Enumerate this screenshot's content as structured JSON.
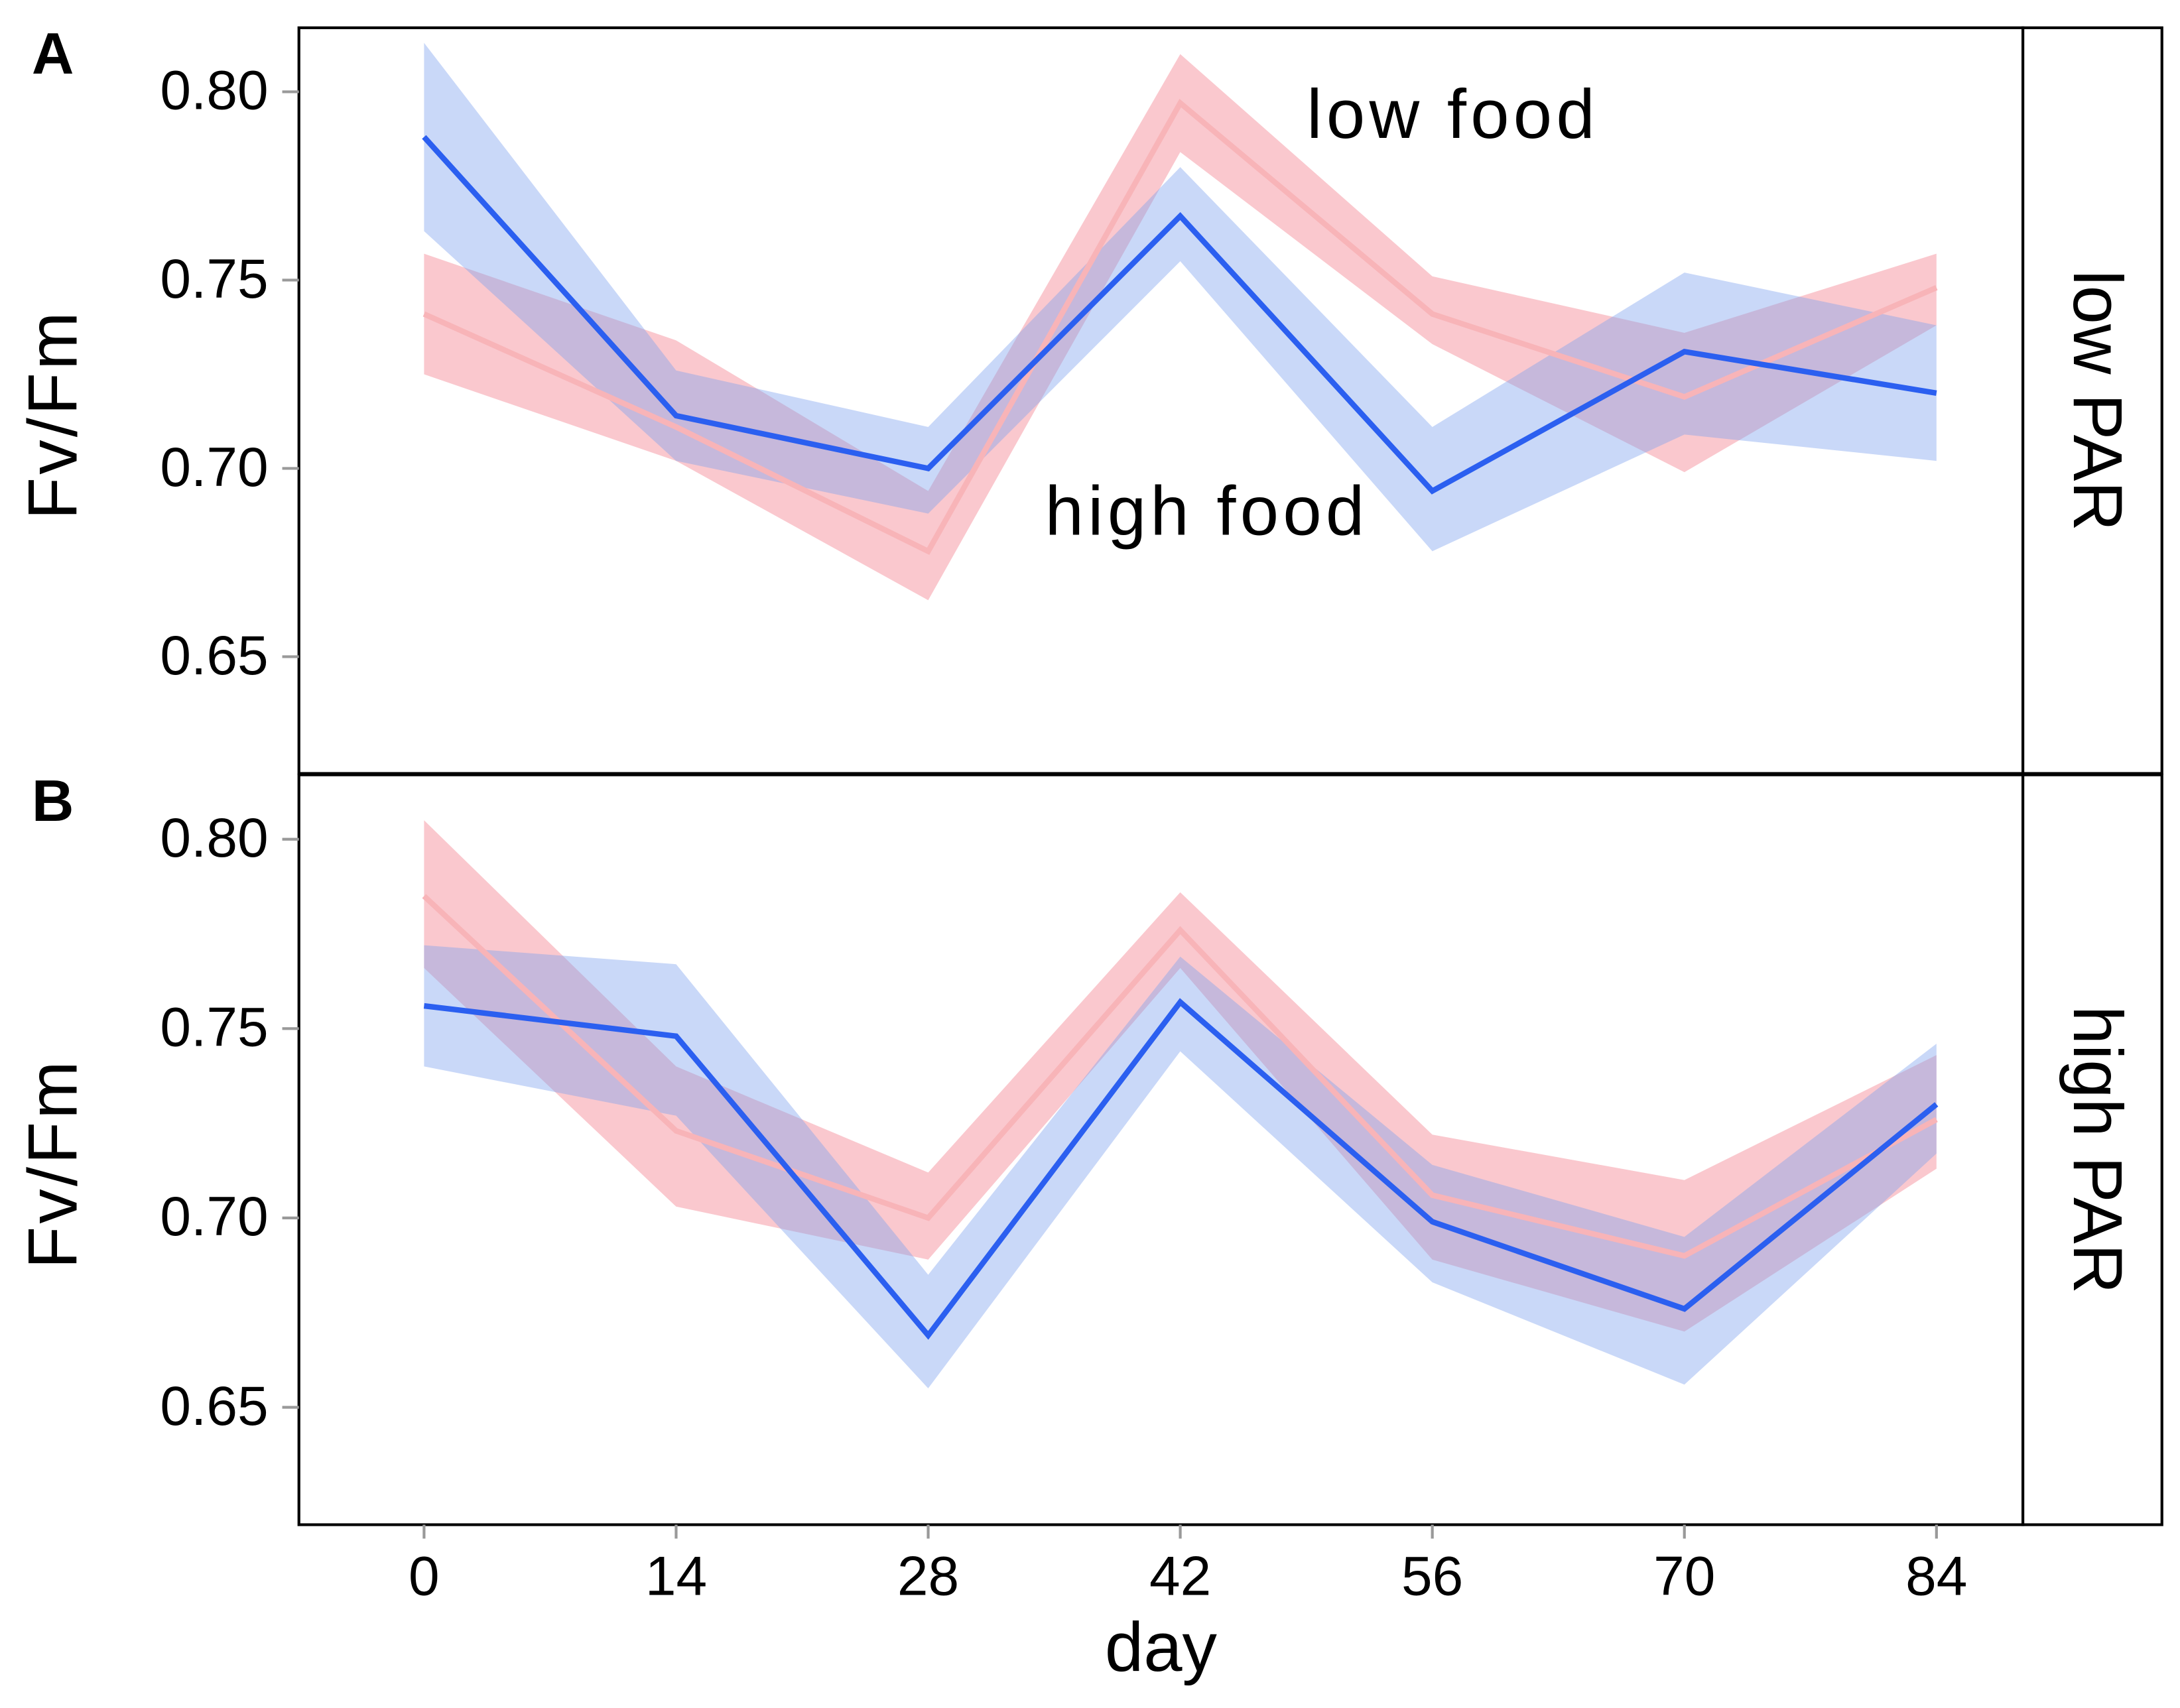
{
  "chart_data": [
    {
      "type": "line",
      "panel_label": "A",
      "facet_label": "low PAR",
      "y_label": "Fv/Fm",
      "x": [
        0,
        14,
        28,
        42,
        56,
        70,
        84
      ],
      "xlim": [
        -6.95,
        88.8
      ],
      "ylim": [
        0.619,
        0.817
      ],
      "yticks": [
        {
          "value": 0.8,
          "label": "0.80"
        },
        0.75,
        {
          "value": 0.7,
          "label": "0.70"
        },
        0.65
      ],
      "series": [
        {
          "name": "low food",
          "color": "#f8b4b8",
          "label_color": "#ee1c25",
          "band_color": "#f27c8a",
          "values": [
            0.741,
            0.711,
            0.678,
            0.797,
            0.741,
            0.719,
            0.748
          ],
          "lower": [
            0.725,
            0.702,
            0.665,
            0.784,
            0.733,
            0.699,
            0.738
          ],
          "upper": [
            0.757,
            0.734,
            0.694,
            0.81,
            0.751,
            0.736,
            0.757
          ]
        },
        {
          "name": "high food",
          "color": "#2b5ff0",
          "label_color": "#1a1aee",
          "band_color": "#7ea2ee",
          "values": [
            0.788,
            0.714,
            0.7,
            0.767,
            0.694,
            0.731,
            0.72
          ],
          "lower": [
            0.763,
            0.702,
            0.688,
            0.755,
            0.678,
            0.709,
            0.702
          ],
          "upper": [
            0.813,
            0.726,
            0.711,
            0.78,
            0.711,
            0.752,
            0.738
          ]
        }
      ]
    },
    {
      "type": "line",
      "panel_label": "B",
      "facet_label": "high PAR",
      "y_label": "Fv/Fm",
      "x_label": "day",
      "x": [
        0,
        14,
        28,
        42,
        56,
        70,
        84
      ],
      "xlim": [
        -6.95,
        88.8
      ],
      "xticks": [
        0,
        14,
        28,
        42,
        56,
        70,
        84
      ],
      "ylim": [
        0.619,
        0.817
      ],
      "yticks": [
        {
          "value": 0.8,
          "label": "0.80"
        },
        0.75,
        {
          "value": 0.7,
          "label": "0.70"
        },
        0.65
      ],
      "series": [
        {
          "color": "#f8b4b8",
          "band_color": "#f27c8a",
          "values": [
            0.785,
            0.723,
            0.7,
            0.776,
            0.706,
            0.69,
            0.726
          ],
          "lower": [
            0.766,
            0.703,
            0.689,
            0.766,
            0.689,
            0.67,
            0.713
          ],
          "upper": [
            0.805,
            0.74,
            0.712,
            0.786,
            0.722,
            0.71,
            0.743
          ]
        },
        {
          "color": "#2b5ff0",
          "band_color": "#7ea2ee",
          "values": [
            0.756,
            0.748,
            0.669,
            0.757,
            0.699,
            0.676,
            0.73
          ],
          "lower": [
            0.74,
            0.727,
            0.655,
            0.744,
            0.683,
            0.656,
            0.717
          ],
          "upper": [
            0.772,
            0.767,
            0.685,
            0.769,
            0.714,
            0.695,
            0.746
          ]
        }
      ]
    }
  ]
}
